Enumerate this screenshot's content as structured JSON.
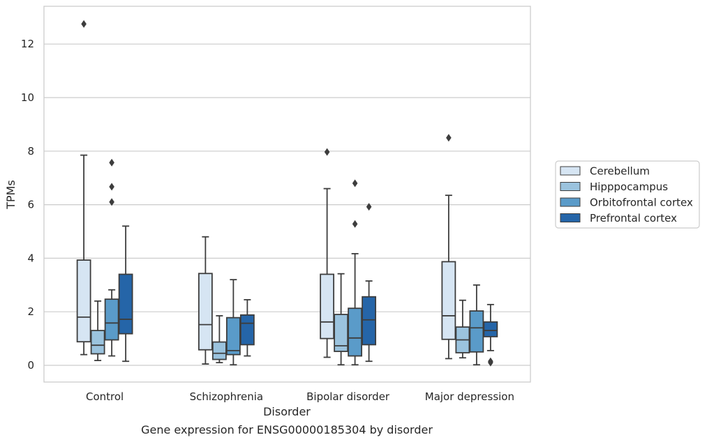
{
  "chart_data": {
    "type": "box",
    "title": "",
    "caption": "Gene expression for ENSG00000185304 by disorder",
    "xlabel": "Disorder",
    "ylabel": "TPMs",
    "ylim": [
      -0.62,
      13.5
    ],
    "yticks": [
      0,
      2,
      4,
      6,
      8,
      10,
      12
    ],
    "grid": "horizontal",
    "legend_placement": "right",
    "categories": [
      "Control",
      "Schizophrenia",
      "Bipolar disorder",
      "Major depression"
    ],
    "series": [
      {
        "name": "Cerebellum",
        "color": "#d6e5f3",
        "boxes": [
          {
            "whisker_low": 0.4,
            "q1": 0.88,
            "median": 1.8,
            "q3": 3.93,
            "whisker_high": 7.85,
            "outliers": [
              12.75
            ]
          },
          {
            "whisker_low": 0.05,
            "q1": 0.58,
            "median": 1.52,
            "q3": 3.43,
            "whisker_high": 4.8,
            "outliers": []
          },
          {
            "whisker_low": 0.3,
            "q1": 1.0,
            "median": 1.62,
            "q3": 3.4,
            "whisker_high": 6.6,
            "outliers": [
              7.97
            ]
          },
          {
            "whisker_low": 0.25,
            "q1": 0.97,
            "median": 1.85,
            "q3": 3.87,
            "whisker_high": 6.35,
            "outliers": [
              8.5
            ]
          }
        ]
      },
      {
        "name": "Hipppocampus",
        "color": "#9bc3de",
        "boxes": [
          {
            "whisker_low": 0.18,
            "q1": 0.43,
            "median": 0.75,
            "q3": 1.3,
            "whisker_high": 2.4,
            "outliers": []
          },
          {
            "whisker_low": 0.1,
            "q1": 0.22,
            "median": 0.45,
            "q3": 0.87,
            "whisker_high": 1.85,
            "outliers": []
          },
          {
            "whisker_low": 0.02,
            "q1": 0.52,
            "median": 0.73,
            "q3": 1.9,
            "whisker_high": 3.42,
            "outliers": []
          },
          {
            "whisker_low": 0.28,
            "q1": 0.47,
            "median": 0.95,
            "q3": 1.43,
            "whisker_high": 2.43,
            "outliers": []
          }
        ]
      },
      {
        "name": "Orbitofrontal cortex",
        "color": "#5a9bc9",
        "boxes": [
          {
            "whisker_low": 0.35,
            "q1": 0.95,
            "median": 1.58,
            "q3": 2.47,
            "whisker_high": 2.82,
            "outliers": [
              6.1,
              6.67,
              7.57
            ]
          },
          {
            "whisker_low": 0.02,
            "q1": 0.4,
            "median": 0.55,
            "q3": 1.78,
            "whisker_high": 3.2,
            "outliers": []
          },
          {
            "whisker_low": 0.02,
            "q1": 0.35,
            "median": 1.02,
            "q3": 2.13,
            "whisker_high": 4.17,
            "outliers": [
              5.28,
              6.8
            ]
          },
          {
            "whisker_low": 0.02,
            "q1": 0.5,
            "median": 1.4,
            "q3": 2.03,
            "whisker_high": 3.0,
            "outliers": []
          }
        ]
      },
      {
        "name": "Prefrontal cortex",
        "color": "#2565a8",
        "boxes": [
          {
            "whisker_low": 0.15,
            "q1": 1.18,
            "median": 1.72,
            "q3": 3.4,
            "whisker_high": 5.2,
            "outliers": []
          },
          {
            "whisker_low": 0.35,
            "q1": 0.77,
            "median": 1.57,
            "q3": 1.88,
            "whisker_high": 2.45,
            "outliers": []
          },
          {
            "whisker_low": 0.15,
            "q1": 0.77,
            "median": 1.7,
            "q3": 2.56,
            "whisker_high": 3.15,
            "outliers": [
              5.92
            ]
          },
          {
            "whisker_low": 0.55,
            "q1": 1.07,
            "median": 1.3,
            "q3": 1.62,
            "whisker_high": 2.27,
            "outliers": [
              0.1,
              0.15
            ]
          }
        ]
      }
    ]
  }
}
